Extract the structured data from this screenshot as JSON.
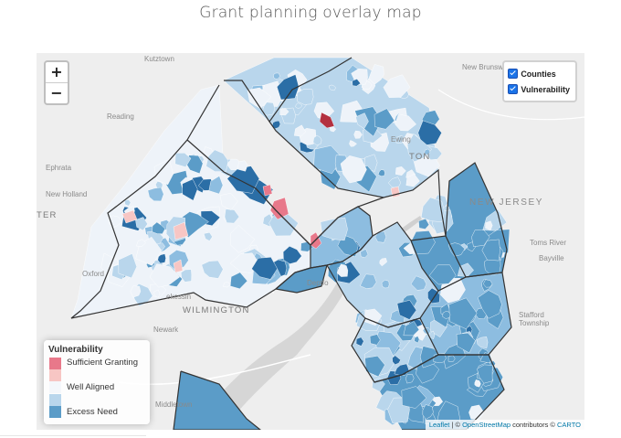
{
  "page": {
    "title": "Grant planning overlay map"
  },
  "map": {
    "zoom": {
      "in_label": "+",
      "out_label": "−"
    },
    "layers": [
      {
        "label": "Counties",
        "checked": true
      },
      {
        "label": "Vulnerability",
        "checked": true
      }
    ],
    "legend": {
      "title": "Vulnerability",
      "items": [
        {
          "label": "Sufficient Granting",
          "color": "#e8788a"
        },
        {
          "label": "",
          "color": "#f7c6c4"
        },
        {
          "label": "Well Aligned",
          "color": "#f4f7fb"
        },
        {
          "label": "",
          "color": "#b9d6ec"
        },
        {
          "label": "Excess Need",
          "color": "#5b9cc8"
        }
      ]
    },
    "places": {
      "kutztown": "Kutztown",
      "new_brunswick": "New Brunsw",
      "reading": "Reading",
      "ewing": "Ewing",
      "trenton": "TON",
      "ephrata": "Ephrata",
      "new_holland": "New Holland",
      "new_jersey": "NEW JERSEY",
      "lancaster": "TER",
      "toms_river": "Toms River",
      "bayville": "Bayville",
      "oxford": "Oxford",
      "kennett": "ekessin",
      "wilmington": "WILMINGTON",
      "deptford": "Deptfo",
      "stafford": "Stafford",
      "stafford2": "Township",
      "newark": "Newark",
      "middletown": "Middletown"
    },
    "attribution": {
      "leaflet": "Leaflet",
      "sep": " | © ",
      "osm": "OpenStreetMap",
      "mid": " contributors © ",
      "carto": "CARTO"
    },
    "colors": {
      "excess_dark": "#2b6ea6",
      "excess": "#5b9cc8",
      "mid_blue": "#8dbde0",
      "light_blue": "#b9d6ec",
      "well_aligned": "#eef3f9",
      "light_red": "#f7c6c4",
      "sufficient": "#e8788a",
      "dark_red": "#b3303f",
      "water": "#d4d4d4"
    }
  }
}
